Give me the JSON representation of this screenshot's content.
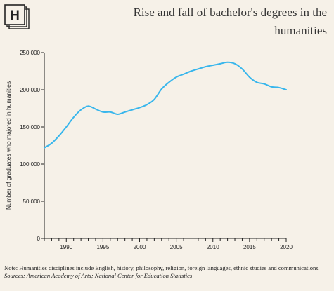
{
  "title": "Rise and fall of bachelor's degrees in the humanities",
  "logo_letter": "H",
  "note": "Note: Humanities disciplines include English, history, philosophy, religion, foreign languages, ethnic studies and communications",
  "source": "Sources: American Academy of Arts; National Center for Education Statistics",
  "colors": {
    "line": "#38b6ec",
    "background": "#f6f1e8",
    "axis": "#222222"
  },
  "chart_data": {
    "type": "line",
    "title": "Rise and fall of bachelor's degrees in the humanities",
    "xlabel": "",
    "ylabel": "Number of graduates who majored in humanities",
    "xlim": [
      1987,
      2020
    ],
    "ylim": [
      0,
      250000
    ],
    "xticks": [
      1990,
      1995,
      2000,
      2005,
      2010,
      2015,
      2020
    ],
    "yticks": [
      0,
      50000,
      100000,
      150000,
      200000,
      250000
    ],
    "ytick_labels": [
      "0",
      "50,000",
      "100,000",
      "150,000",
      "200,000",
      "250,000"
    ],
    "grid": false,
    "x": [
      1987,
      1988,
      1989,
      1990,
      1991,
      1992,
      1993,
      1994,
      1995,
      1996,
      1997,
      1998,
      1999,
      2000,
      2001,
      2002,
      2003,
      2004,
      2005,
      2006,
      2007,
      2008,
      2009,
      2010,
      2011,
      2012,
      2013,
      2014,
      2015,
      2016,
      2017,
      2018,
      2019,
      2020
    ],
    "y": [
      122000,
      128000,
      138000,
      150000,
      163000,
      173000,
      178000,
      174000,
      170000,
      170000,
      167000,
      170000,
      173000,
      176000,
      180000,
      187000,
      201000,
      210000,
      217000,
      221000,
      225000,
      228000,
      231000,
      233000,
      235000,
      237000,
      235000,
      228000,
      217000,
      210000,
      208000,
      204000,
      203000,
      200000
    ]
  }
}
